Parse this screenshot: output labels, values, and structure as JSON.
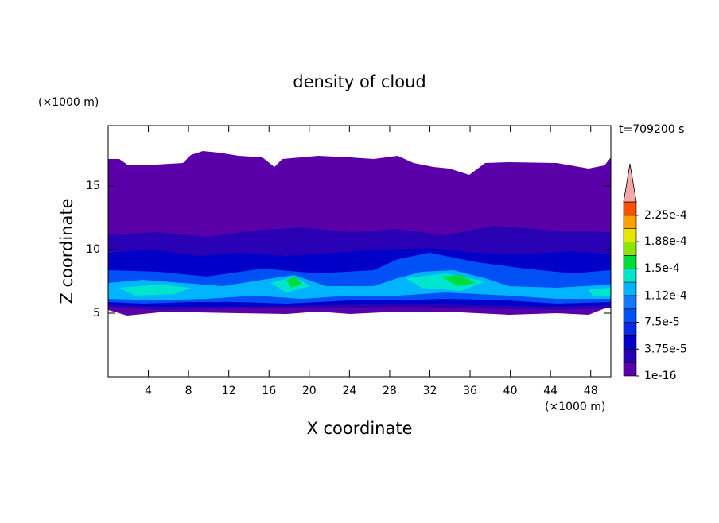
{
  "chart_data": {
    "type": "contour",
    "title": "density of cloud",
    "x_label": "X coordinate",
    "y_label": "Z coordinate",
    "x_unit": "(×1000 m)",
    "y_unit": "(×1000 m)",
    "annotation": "t=709200 s",
    "xlim": [
      0,
      50
    ],
    "xticks": [
      4,
      8,
      12,
      16,
      20,
      24,
      28,
      32,
      36,
      40,
      44,
      48
    ],
    "ylim": [
      0,
      19.75
    ],
    "yticks": [
      5,
      10,
      15
    ],
    "colorbar": {
      "clim": [
        1e-16,
        0.00024375
      ],
      "colors": [
        "#5a00a8",
        "#2a00b4",
        "#0000c8",
        "#0a28e6",
        "#0050f5",
        "#1478ff",
        "#00b4ff",
        "#00e6cc",
        "#00dc3c",
        "#8ce600",
        "#e6e600",
        "#ffa000",
        "#ff5000"
      ],
      "extend_color": "#f4a8a8",
      "ticks": [
        {
          "value": 1e-16,
          "label": "1e-16"
        },
        {
          "value": 3.75e-05,
          "label": "3.75e-5"
        },
        {
          "value": 7.5e-05,
          "label": "7.5e-5"
        },
        {
          "value": 0.000112,
          "label": "1.12e-4"
        },
        {
          "value": 0.00015,
          "label": "1.5e-4"
        },
        {
          "value": 0.000188,
          "label": "1.88e-4"
        },
        {
          "value": 0.000225,
          "label": "2.25e-4"
        }
      ]
    }
  }
}
